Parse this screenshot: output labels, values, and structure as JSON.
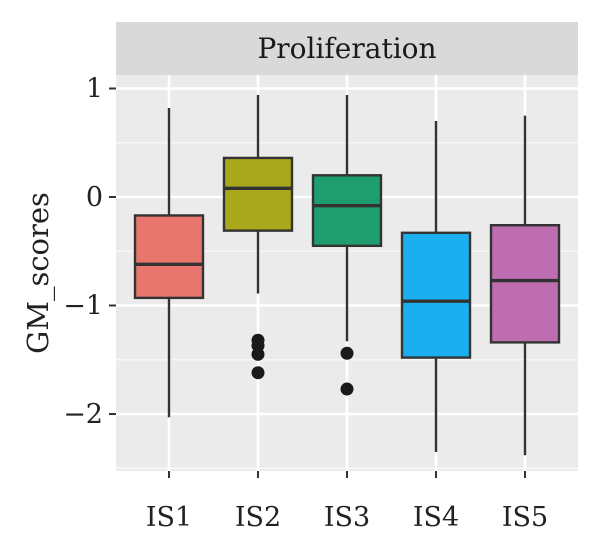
{
  "chart_data": {
    "type": "boxplot",
    "facet_label": "Proliferation",
    "xlabel": "",
    "ylabel": "GM_scores",
    "categories": [
      "IS1",
      "IS2",
      "IS3",
      "IS4",
      "IS5"
    ],
    "yticks": [
      1,
      0,
      -1,
      -2
    ],
    "ylim": [
      -2.55,
      1.1
    ],
    "grid": true,
    "boxes": [
      {
        "category": "IS1",
        "whisker_low": -2.03,
        "q1": -0.93,
        "median": -0.62,
        "q3": -0.17,
        "whisker_high": 0.82,
        "outliers": [],
        "color": "#E8766E"
      },
      {
        "category": "IS2",
        "whisker_low": -0.89,
        "q1": -0.31,
        "median": 0.08,
        "q3": 0.36,
        "whisker_high": 0.94,
        "outliers": [
          -1.32,
          -1.37,
          -1.45,
          -1.62
        ],
        "color": "#A9A81C"
      },
      {
        "category": "IS3",
        "whisker_low": -1.33,
        "q1": -0.45,
        "median": -0.08,
        "q3": 0.2,
        "whisker_high": 0.94,
        "outliers": [
          -1.44,
          -1.77
        ],
        "color": "#1E9E6E"
      },
      {
        "category": "IS4",
        "whisker_low": -2.35,
        "q1": -1.48,
        "median": -0.96,
        "q3": -0.33,
        "whisker_high": 0.7,
        "outliers": [],
        "color": "#1BAFEF"
      },
      {
        "category": "IS5",
        "whisker_low": -2.38,
        "q1": -1.34,
        "median": -0.77,
        "q3": -0.26,
        "whisker_high": 0.75,
        "outliers": [],
        "color": "#BE6DB0"
      }
    ]
  }
}
